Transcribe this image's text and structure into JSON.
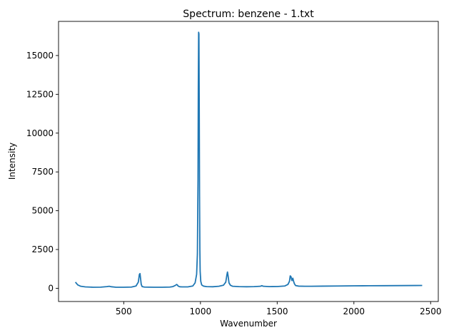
{
  "chart_data": {
    "type": "line",
    "title": "Spectrum: benzene - 1.txt",
    "xlabel": "Wavenumber",
    "ylabel": "Intensity",
    "xlim": [
      75,
      2550
    ],
    "ylim": [
      -850,
      17200
    ],
    "xticks": [
      500,
      1000,
      1500,
      2000,
      2500
    ],
    "yticks": [
      0,
      2500,
      5000,
      7500,
      10000,
      12500,
      15000
    ],
    "grid": false,
    "legend": "none",
    "line_color": "#1f77b4",
    "series": [
      {
        "x": [
          185,
          200,
          220,
          250,
          300,
          350,
          390,
          405,
          420,
          450,
          500,
          550,
          580,
          595,
          602,
          606,
          610,
          614,
          620,
          635,
          660,
          700,
          750,
          800,
          820,
          835,
          845,
          850,
          855,
          865,
          880,
          920,
          950,
          965,
          975,
          980,
          984,
          986,
          988,
          990,
          992,
          994,
          996,
          998,
          1002,
          1008,
          1020,
          1040,
          1080,
          1120,
          1150,
          1165,
          1172,
          1176,
          1180,
          1186,
          1195,
          1210,
          1250,
          1300,
          1350,
          1390,
          1400,
          1410,
          1450,
          1500,
          1550,
          1570,
          1580,
          1585,
          1590,
          1596,
          1602,
          1607,
          1612,
          1620,
          1640,
          1680,
          1720,
          1800,
          1900,
          2000,
          2100,
          2200,
          2300,
          2400,
          2445
        ],
        "y": [
          400,
          220,
          130,
          90,
          70,
          75,
          110,
          130,
          100,
          70,
          70,
          80,
          150,
          400,
          900,
          950,
          600,
          250,
          110,
          80,
          75,
          70,
          70,
          80,
          110,
          180,
          250,
          210,
          140,
          100,
          90,
          95,
          150,
          350,
          900,
          2200,
          7000,
          13000,
          16500,
          16400,
          12000,
          6000,
          2500,
          1100,
          450,
          220,
          140,
          110,
          100,
          130,
          200,
          400,
          850,
          1050,
          800,
          350,
          200,
          130,
          110,
          100,
          110,
          130,
          170,
          130,
          110,
          115,
          150,
          250,
          450,
          800,
          750,
          500,
          650,
          450,
          300,
          180,
          140,
          130,
          130,
          140,
          150,
          160,
          165,
          170,
          175,
          180,
          185
        ]
      }
    ]
  }
}
